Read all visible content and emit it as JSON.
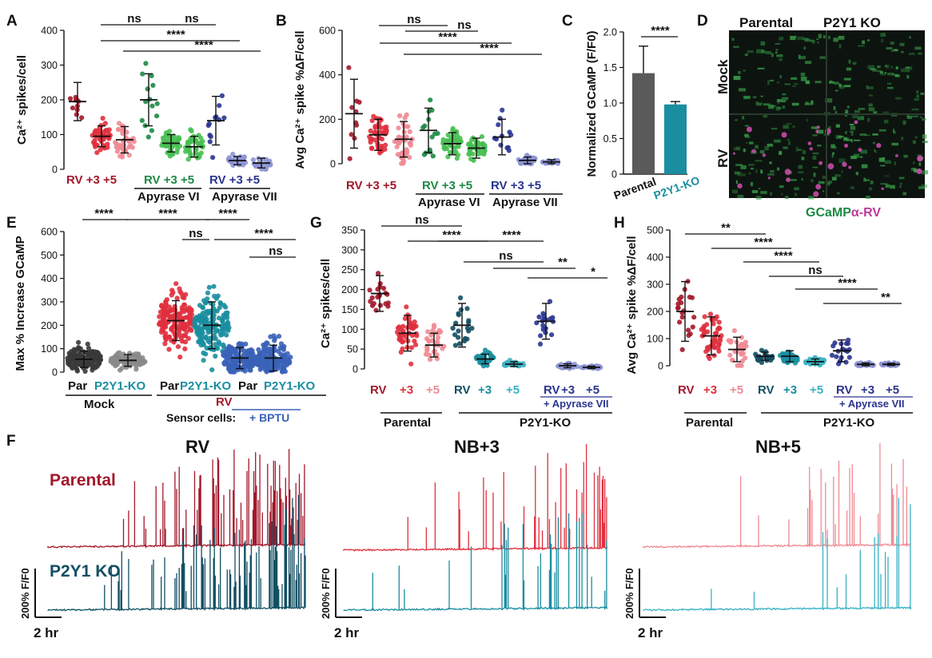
{
  "colors": {
    "rv_dark": "#a3182b",
    "rv_mid": "#e0303e",
    "rv_light": "#f08a94",
    "apy6_dark": "#1c8a45",
    "apy6_light": "#48bf52",
    "apy7_dark": "#2a3590",
    "apy7_light": "#8c93d4",
    "ko_dark": "#124f63",
    "ko_mid": "#1a8ea0",
    "ko_light": "#3bb2c4",
    "grey_dark": "#3a3a3a",
    "grey_light": "#8a8a8a",
    "ctrl_blue": "#3a62b8"
  },
  "panels": {
    "A": {
      "label": "A"
    },
    "B": {
      "label": "B"
    },
    "C": {
      "label": "C"
    },
    "D": {
      "label": "D"
    },
    "E": {
      "label": "E"
    },
    "F": {
      "label": "F"
    },
    "G": {
      "label": "G"
    },
    "H": {
      "label": "H"
    }
  },
  "panel_D": {
    "col_parental": "Parental",
    "col_ko": "P2Y1 KO",
    "row_mock": "Mock",
    "row_rv": "RV",
    "legend_gcamp": "GCaMP",
    "legend_rv": "α-RV"
  },
  "panel_F": {
    "titles": [
      "RV",
      "NB+3",
      "NB+5"
    ],
    "row_parental": "Parental",
    "row_ko": "P2Y1 KO",
    "scale_y": "200% F/F0",
    "scale_x": "2 hr"
  },
  "chart_data": [
    {
      "id": "A",
      "type": "scatter",
      "ylabel": "Ca²⁺ spikes/cell",
      "ylim": [
        0,
        400
      ],
      "yticks": [
        0,
        100,
        200,
        300,
        400
      ],
      "categories": [
        "RV",
        "+3",
        "+5",
        "RV",
        "+3",
        "+5",
        "RV",
        "+3",
        "+5"
      ],
      "group_labels": [
        "Apyrase VI",
        "Apyrase VII"
      ],
      "series": [
        {
          "name": "RV",
          "mean": 195,
          "sd": 55,
          "n": 10
        },
        {
          "name": "+3",
          "mean": 95,
          "sd": 30,
          "n": 45
        },
        {
          "name": "+5",
          "mean": 85,
          "sd": 38,
          "n": 40
        },
        {
          "name": "Apyrase VI RV",
          "mean": 200,
          "sd": 75,
          "n": 14
        },
        {
          "name": "Apyrase VI +3",
          "mean": 75,
          "sd": 25,
          "n": 45
        },
        {
          "name": "Apyrase VI +5",
          "mean": 65,
          "sd": 30,
          "n": 40
        },
        {
          "name": "Apyrase VII RV",
          "mean": 140,
          "sd": 70,
          "n": 12
        },
        {
          "name": "Apyrase VII +3",
          "mean": 25,
          "sd": 12,
          "n": 30
        },
        {
          "name": "Apyrase VII +5",
          "mean": 18,
          "sd": 14,
          "n": 25
        }
      ],
      "significance": [
        "ns",
        "ns",
        "****",
        "****"
      ]
    },
    {
      "id": "B",
      "type": "scatter",
      "ylabel": "Avg Ca²⁺ spike %ΔF/cell",
      "ylim": [
        0,
        600
      ],
      "yticks": [
        0,
        200,
        400,
        600
      ],
      "categories": [
        "RV",
        "+3",
        "+5",
        "RV",
        "+3",
        "+5",
        "RV",
        "+3",
        "+5"
      ],
      "group_labels": [
        "Apyrase VI",
        "Apyrase VII"
      ],
      "series": [
        {
          "name": "RV",
          "mean": 225,
          "sd": 155,
          "n": 10
        },
        {
          "name": "+3",
          "mean": 130,
          "sd": 70,
          "n": 45
        },
        {
          "name": "+5",
          "mean": 110,
          "sd": 80,
          "n": 40
        },
        {
          "name": "Apyrase VI RV",
          "mean": 150,
          "sd": 100,
          "n": 14
        },
        {
          "name": "Apyrase VI +3",
          "mean": 90,
          "sd": 50,
          "n": 45
        },
        {
          "name": "Apyrase VI +5",
          "mean": 70,
          "sd": 45,
          "n": 40
        },
        {
          "name": "Apyrase VII RV",
          "mean": 120,
          "sd": 80,
          "n": 12
        },
        {
          "name": "Apyrase VII +3",
          "mean": 15,
          "sd": 15,
          "n": 30
        },
        {
          "name": "Apyrase VII +5",
          "mean": 8,
          "sd": 10,
          "n": 25
        }
      ],
      "significance": [
        "ns",
        "ns",
        "****",
        "****"
      ]
    },
    {
      "id": "C",
      "type": "bar",
      "ylabel": "Normalized GCaMP (F/F0)",
      "ylim": [
        0,
        2.0
      ],
      "yticks": [
        "0",
        "0.5",
        "1.0",
        "1.5",
        "2.0"
      ],
      "categories": [
        "Parental",
        "P2Y1-KO"
      ],
      "values": [
        1.42,
        0.98
      ],
      "errors": [
        0.38,
        0.04
      ],
      "significance": [
        "****"
      ]
    },
    {
      "id": "E",
      "type": "scatter",
      "ylabel": "Max % Increase GCaMP",
      "ylim": [
        0,
        600
      ],
      "yticks": [
        0,
        100,
        200,
        300,
        400,
        500,
        600
      ],
      "categories": [
        "Par",
        "P2Y1-KO",
        "Par",
        "P2Y1-KO",
        "Par",
        "P2Y1-KO"
      ],
      "group_labels": [
        "Mock",
        "RV",
        "Sensor cells:",
        "+ BPTU"
      ],
      "series": [
        {
          "name": "Mock Par",
          "mean": 55,
          "sd": 35,
          "n": 150
        },
        {
          "name": "Mock P2Y1-KO",
          "mean": 50,
          "sd": 25,
          "n": 100
        },
        {
          "name": "RV Par",
          "mean": 220,
          "sd": 85,
          "n": 250
        },
        {
          "name": "RV P2Y1-KO",
          "mean": 200,
          "sd": 100,
          "n": 250
        },
        {
          "name": "BPTU Par",
          "mean": 60,
          "sd": 45,
          "n": 150
        },
        {
          "name": "BPTU P2Y1-KO",
          "mean": 60,
          "sd": 55,
          "n": 150
        }
      ],
      "significance": [
        "****",
        "****",
        "ns",
        "****",
        "****",
        "ns"
      ]
    },
    {
      "id": "G",
      "type": "scatter",
      "ylabel": "Ca²⁺ spikes/cell",
      "ylim": [
        0,
        350
      ],
      "yticks": [
        0,
        50,
        100,
        150,
        200,
        250,
        300,
        350
      ],
      "categories": [
        "RV",
        "+3",
        "+5",
        "RV",
        "+3",
        "+5",
        "RV",
        "+3",
        "+5"
      ],
      "group_labels": [
        "+ Apyrase VII",
        "Parental",
        "P2Y1-KO"
      ],
      "series": [
        {
          "name": "Parental RV",
          "mean": 190,
          "sd": 45,
          "n": 20
        },
        {
          "name": "Parental +3",
          "mean": 90,
          "sd": 45,
          "n": 45
        },
        {
          "name": "Parental +5",
          "mean": 60,
          "sd": 30,
          "n": 30
        },
        {
          "name": "P2Y1-KO RV",
          "mean": 110,
          "sd": 55,
          "n": 20
        },
        {
          "name": "P2Y1-KO +3",
          "mean": 25,
          "sd": 12,
          "n": 40
        },
        {
          "name": "P2Y1-KO +5",
          "mean": 12,
          "sd": 6,
          "n": 35
        },
        {
          "name": "P2Y1-KO + Apyrase VII RV",
          "mean": 120,
          "sd": 45,
          "n": 18
        },
        {
          "name": "P2Y1-KO + Apyrase VII +3",
          "mean": 8,
          "sd": 5,
          "n": 30
        },
        {
          "name": "P2Y1-KO + Apyrase VII +5",
          "mean": 4,
          "sd": 3,
          "n": 30
        }
      ],
      "significance": [
        "ns",
        "****",
        "****",
        "ns",
        "**",
        "*"
      ]
    },
    {
      "id": "H",
      "type": "scatter",
      "ylabel": "Avg Ca²⁺ spike %ΔF/cell",
      "ylim": [
        0,
        500
      ],
      "yticks": [
        0,
        100,
        200,
        300,
        400,
        500
      ],
      "categories": [
        "RV",
        "+3",
        "+5",
        "RV",
        "+3",
        "+5",
        "RV",
        "+3",
        "+5"
      ],
      "group_labels": [
        "+ Apyrase VII",
        "Parental",
        "P2Y1-KO"
      ],
      "series": [
        {
          "name": "Parental RV",
          "mean": 200,
          "sd": 110,
          "n": 20
        },
        {
          "name": "Parental +3",
          "mean": 110,
          "sd": 70,
          "n": 45
        },
        {
          "name": "Parental +5",
          "mean": 60,
          "sd": 45,
          "n": 30
        },
        {
          "name": "P2Y1-KO RV",
          "mean": 35,
          "sd": 15,
          "n": 20
        },
        {
          "name": "P2Y1-KO +3",
          "mean": 35,
          "sd": 20,
          "n": 40
        },
        {
          "name": "P2Y1-KO +5",
          "mean": 15,
          "sd": 10,
          "n": 35
        },
        {
          "name": "P2Y1-KO + Apyrase VII RV",
          "mean": 55,
          "sd": 40,
          "n": 18
        },
        {
          "name": "P2Y1-KO + Apyrase VII +3",
          "mean": 5,
          "sd": 5,
          "n": 30
        },
        {
          "name": "P2Y1-KO + Apyrase VII +5",
          "mean": 5,
          "sd": 4,
          "n": 30
        }
      ],
      "significance": [
        "**",
        "****",
        "****",
        "ns",
        "****",
        "**"
      ]
    }
  ]
}
